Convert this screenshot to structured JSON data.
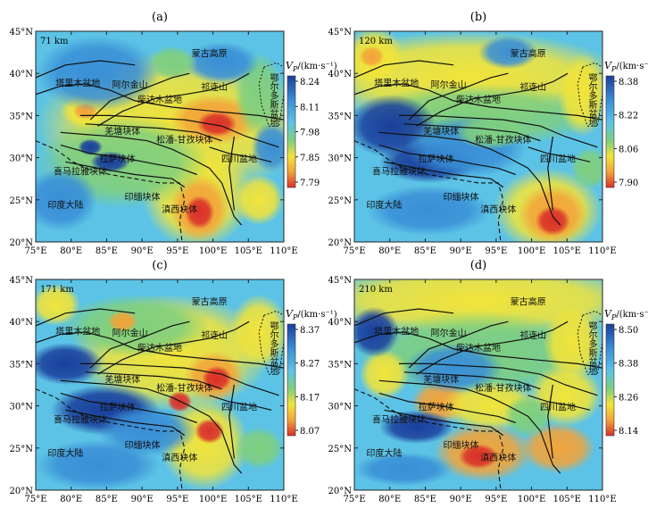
{
  "figure": {
    "panels": [
      {
        "label": "(a)",
        "depth": "71 km",
        "colorbar": {
          "title": "V",
          "sub": "P",
          "unit": "/(km·s⁻¹)",
          "ticks": [
            "8.24",
            "8.11",
            "7.98",
            "7.85",
            "7.79"
          ]
        }
      },
      {
        "label": "(b)",
        "depth": "120 km",
        "colorbar": {
          "title": "V",
          "sub": "P",
          "unit": "/(km·s⁻¹)",
          "ticks": [
            "8.38",
            "8.22",
            "8.06",
            "7.90"
          ]
        }
      },
      {
        "label": "(c)",
        "depth": "171 km",
        "colorbar": {
          "title": "V",
          "sub": "P",
          "unit": "/(km·s⁻¹)",
          "ticks": [
            "8.37",
            "8.27",
            "8.17",
            "8.07"
          ]
        }
      },
      {
        "label": "(d)",
        "depth": "210 km",
        "colorbar": {
          "title": "V",
          "sub": "P",
          "unit": "/(km·s⁻¹)",
          "ticks": [
            "8.50",
            "8.38",
            "8.26",
            "8.14"
          ]
        }
      }
    ],
    "lon_ticks": [
      "75°E",
      "80°E",
      "85°E",
      "90°E",
      "95°E",
      "100°E",
      "105°E",
      "110°E"
    ],
    "lat_ticks": [
      "45°N",
      "40°N",
      "35°N",
      "30°N",
      "25°N",
      "20°N"
    ],
    "regions": {
      "mongolia": "蒙古高原",
      "tarim": "塔里木盆地",
      "altun": "阿尔金山",
      "qilian": "祁连山",
      "qaidam": "柴达木盆地",
      "ordos": "鄂尔多斯盆地",
      "qiangtang": "羌塘块体",
      "songpan": "松潘-甘孜块体",
      "lhasa": "拉萨块体",
      "sichuan": "四川盆地",
      "himalaya": "喜马拉雅块体",
      "indochina": "印缅块体",
      "india": "印度大陆",
      "yunnan": "滇西块体"
    },
    "colors": {
      "blue_dark": "#1a3f9c",
      "blue": "#3a8fd6",
      "cyan": "#5cc3e6",
      "green": "#7fcf7f",
      "yellow": "#f2e43a",
      "orange": "#f2a43a",
      "red": "#d9302a"
    }
  }
}
